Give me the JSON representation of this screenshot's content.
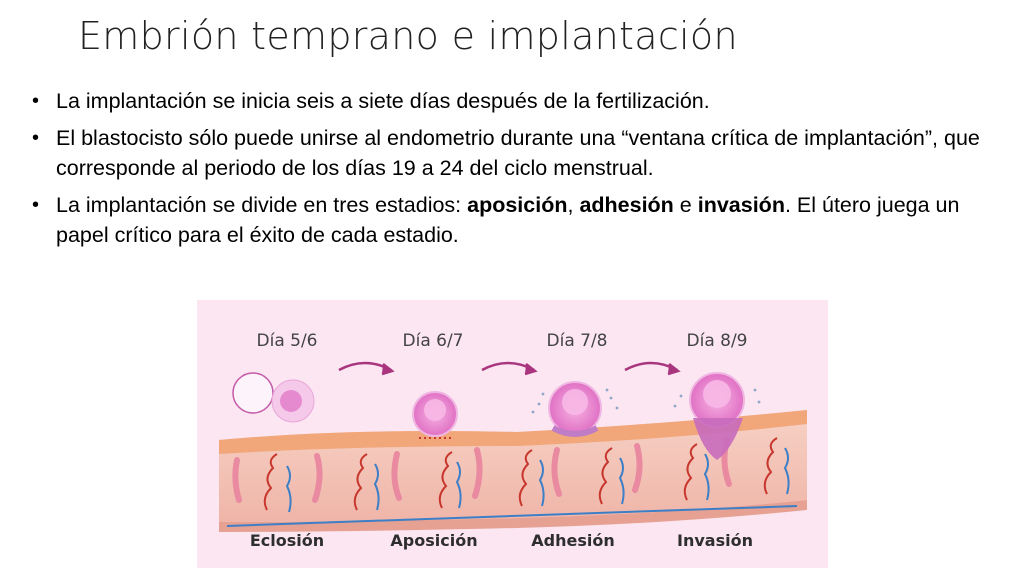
{
  "slide": {
    "title": "Embrión temprano e implantación",
    "bullets": [
      {
        "text": "La implantación se inicia seis a siete días después de la fertilización."
      },
      {
        "text": "El blastocisto sólo puede unirse al endometrio durante una “ventana crítica de implantación”, que corresponde al periodo de los días 19 a 24 del ciclo menstrual."
      },
      {
        "pre": "La implantación se divide en tres estadios: ",
        "term1": "aposición",
        "sep1": ", ",
        "term2": "adhesión",
        "sep2": " e ",
        "term3": "invasión",
        "post": ". El útero juega un papel crítico para el éxito de cada estadio."
      }
    ]
  },
  "figure": {
    "days": [
      "Día 5/6",
      "Día 6/7",
      "Día 7/8",
      "Día 8/9"
    ],
    "stages": [
      "Eclosión",
      "Aposición",
      "Adhesión",
      "Invasión"
    ],
    "colors": {
      "background": "#fbe6f2",
      "tissue": "#f3c7b8",
      "surface": "#f2a77a",
      "embryo": "#e88fd0",
      "arrow": "#a9357f",
      "vessel_red": "#c8372d",
      "vessel_blue": "#3d7fc6"
    }
  }
}
